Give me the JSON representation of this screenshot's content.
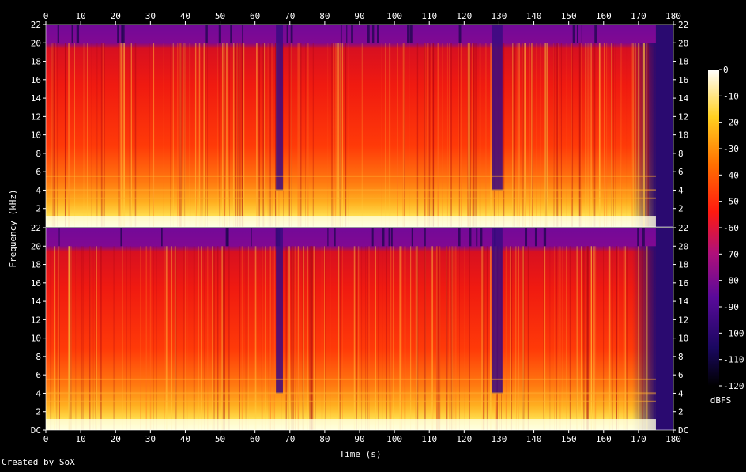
{
  "chart_data": {
    "type": "heatmap",
    "title": "",
    "xlabel": "Time (s)",
    "ylabel": "Frequency (kHz)",
    "colorbar_label": "dBFS",
    "credit": "Created by SoX",
    "xlim": [
      0,
      180
    ],
    "x_ticks": [
      0,
      10,
      20,
      30,
      40,
      50,
      60,
      70,
      80,
      90,
      100,
      110,
      120,
      130,
      140,
      150,
      160,
      170,
      180
    ],
    "ylim": [
      0,
      22
    ],
    "y_ticks": [
      "DC",
      "2",
      "4",
      "6",
      "8",
      "10",
      "12",
      "14",
      "16",
      "18",
      "20",
      "22"
    ],
    "colorbar_ticks": [
      0,
      -10,
      -20,
      -30,
      -40,
      -50,
      -60,
      -70,
      -80,
      -90,
      -100,
      -110,
      -120
    ],
    "colorbar_range": [
      -120,
      0
    ],
    "channels": 2,
    "audio_end_s": 175,
    "lowpass_cutoff_khz": 20,
    "quiet_sections_s": [
      [
        66,
        68
      ],
      [
        128,
        131
      ]
    ],
    "colors": {
      "background": "#000000",
      "high": "#ffffe8",
      "mid": "#ff2a00",
      "low": "#7a0a9a",
      "floor": "#2a0a70"
    }
  }
}
